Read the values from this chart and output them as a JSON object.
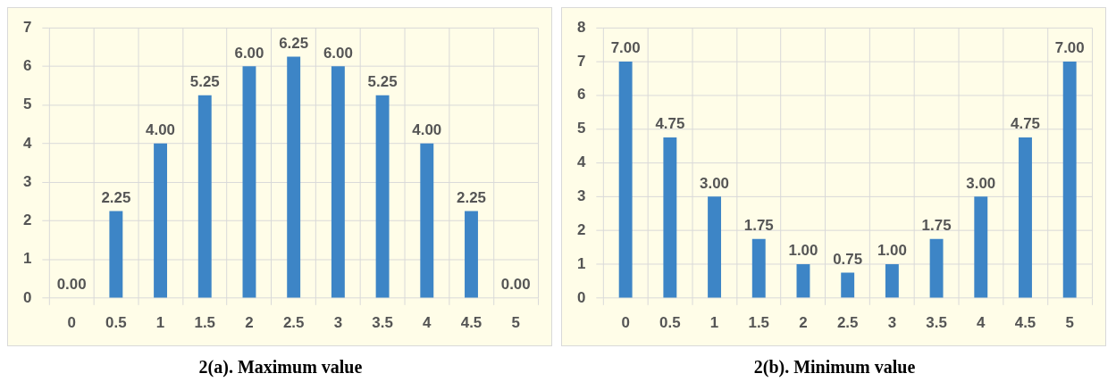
{
  "chart_data": [
    {
      "type": "bar",
      "title": "2(a). Maximum value",
      "categories": [
        "0",
        "0.5",
        "1",
        "1.5",
        "2",
        "2.5",
        "3",
        "3.5",
        "4",
        "4.5",
        "5"
      ],
      "values": [
        0,
        2.25,
        4,
        5.25,
        6,
        6.25,
        6,
        5.25,
        4,
        2.25,
        0
      ],
      "value_labels": [
        "0.00",
        "2.25",
        "4.00",
        "5.25",
        "6.00",
        "6.25",
        "6.00",
        "5.25",
        "4.00",
        "2.25",
        "0.00"
      ],
      "color": "#3d85c6",
      "ylim": [
        0,
        7
      ],
      "yticks": [
        0,
        1,
        2,
        3,
        4,
        5,
        6,
        7
      ],
      "grid": true
    },
    {
      "type": "bar",
      "title": "2(b). Minimum value",
      "categories": [
        "0",
        "0.5",
        "1",
        "1.5",
        "2",
        "2.5",
        "3",
        "3.5",
        "4",
        "4.5",
        "5"
      ],
      "values": [
        7,
        4.75,
        3,
        1.75,
        1,
        0.75,
        1,
        1.75,
        3,
        4.75,
        7
      ],
      "value_labels": [
        "7.00",
        "4.75",
        "3.00",
        "1.75",
        "1.00",
        "0.75",
        "1.00",
        "1.75",
        "3.00",
        "4.75",
        "7.00"
      ],
      "color": "#3d85c6",
      "ylim": [
        0,
        8
      ],
      "yticks": [
        0,
        1,
        2,
        3,
        4,
        5,
        6,
        7,
        8
      ],
      "grid": true
    }
  ]
}
